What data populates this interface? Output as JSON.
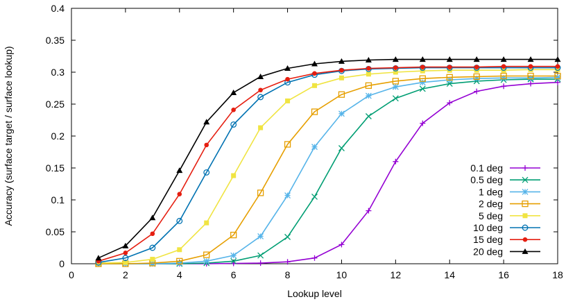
{
  "chart_data": {
    "type": "line",
    "title": "",
    "xlabel": "Lookup level",
    "ylabel": "Accuracy (surface target / surface lookup)",
    "xlim": [
      0,
      18
    ],
    "ylim": [
      0,
      0.4
    ],
    "xticks": [
      0,
      2,
      4,
      6,
      8,
      10,
      12,
      14,
      16,
      18
    ],
    "yticks": [
      0,
      0.05,
      0.1,
      0.15,
      0.2,
      0.25,
      0.3,
      0.35,
      0.4
    ],
    "xtick_labels": [
      "0",
      "2",
      "4",
      "6",
      "8",
      "10",
      "12",
      "14",
      "16",
      "18"
    ],
    "ytick_labels": [
      "0",
      "0.05",
      "0.1",
      "0.15",
      "0.2",
      "0.25",
      "0.3",
      "0.35",
      "0.4"
    ],
    "grid": false,
    "legend_position": "bottom-right",
    "x": [
      1,
      2,
      3,
      4,
      5,
      6,
      7,
      8,
      9,
      10,
      11,
      12,
      13,
      14,
      15,
      16,
      17,
      18
    ],
    "series": [
      {
        "name": "0.1 deg",
        "color": "#9400d3",
        "marker": "plus",
        "values": [
          0,
          0,
          0,
          0,
          0,
          0.0005,
          0.001,
          0.003,
          0.009,
          0.03,
          0.083,
          0.16,
          0.22,
          0.252,
          0.27,
          0.278,
          0.282,
          0.284
        ]
      },
      {
        "name": "0.5 deg",
        "color": "#009e73",
        "marker": "cross",
        "values": [
          0,
          0,
          0,
          0,
          0.001,
          0.004,
          0.013,
          0.042,
          0.105,
          0.181,
          0.231,
          0.259,
          0.274,
          0.282,
          0.286,
          0.288,
          0.289,
          0.289
        ]
      },
      {
        "name": "1 deg",
        "color": "#56b4e9",
        "marker": "star",
        "values": [
          0,
          0,
          0,
          0.001,
          0.004,
          0.013,
          0.043,
          0.107,
          0.183,
          0.235,
          0.263,
          0.277,
          0.284,
          0.288,
          0.29,
          0.291,
          0.291,
          0.292
        ]
      },
      {
        "name": "2 deg",
        "color": "#e69f00",
        "marker": "square",
        "values": [
          0,
          0,
          0.001,
          0.004,
          0.014,
          0.045,
          0.111,
          0.187,
          0.238,
          0.265,
          0.279,
          0.286,
          0.29,
          0.292,
          0.293,
          0.294,
          0.294,
          0.294
        ]
      },
      {
        "name": "5 deg",
        "color": "#f0e442",
        "marker": "filled-square",
        "values": [
          0.001,
          0.002,
          0.007,
          0.022,
          0.064,
          0.138,
          0.213,
          0.255,
          0.279,
          0.291,
          0.297,
          0.3,
          0.302,
          0.303,
          0.303,
          0.303,
          0.304,
          0.304
        ]
      },
      {
        "name": "10 deg",
        "color": "#0072b2",
        "marker": "circle",
        "values": [
          0.002,
          0.009,
          0.025,
          0.067,
          0.143,
          0.218,
          0.261,
          0.284,
          0.296,
          0.302,
          0.305,
          0.306,
          0.307,
          0.307,
          0.307,
          0.307,
          0.307,
          0.307
        ]
      },
      {
        "name": "15 deg",
        "color": "#e51e10",
        "marker": "filled-circle",
        "values": [
          0.004,
          0.017,
          0.047,
          0.109,
          0.186,
          0.241,
          0.272,
          0.289,
          0.298,
          0.303,
          0.306,
          0.307,
          0.308,
          0.308,
          0.308,
          0.309,
          0.309,
          0.309
        ]
      },
      {
        "name": "20 deg",
        "color": "#000000",
        "marker": "triangle",
        "values": [
          0.009,
          0.028,
          0.072,
          0.146,
          0.222,
          0.268,
          0.293,
          0.306,
          0.313,
          0.317,
          0.319,
          0.32,
          0.32,
          0.32,
          0.32,
          0.32,
          0.32,
          0.32
        ]
      }
    ]
  }
}
